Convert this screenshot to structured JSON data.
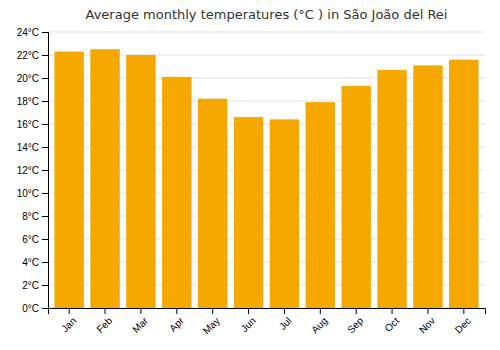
{
  "chart_data": {
    "type": "bar",
    "title": "Average monthly temperatures (°C ) in São João del Rei",
    "categories": [
      "Jan",
      "Feb",
      "Mar",
      "Apr",
      "May",
      "Jun",
      "Jul",
      "Aug",
      "Sep",
      "Oct",
      "Nov",
      "Dec"
    ],
    "values": [
      22.3,
      22.5,
      22.0,
      20.1,
      18.2,
      16.6,
      16.4,
      17.9,
      19.3,
      20.7,
      21.1,
      21.6
    ],
    "color": "#F5A800",
    "ylim": [
      0,
      24
    ],
    "yticks": [
      {
        "value": 0,
        "label": "0°C"
      },
      {
        "value": 2,
        "label": "2°C"
      },
      {
        "value": 4,
        "label": "4°C"
      },
      {
        "value": 6,
        "label": "6°C"
      },
      {
        "value": 8,
        "label": "8°C"
      },
      {
        "value": 10,
        "label": "10°C"
      },
      {
        "value": 12,
        "label": "12°C"
      },
      {
        "value": 14,
        "label": "14°C"
      },
      {
        "value": 16,
        "label": "16°C"
      },
      {
        "value": 18,
        "label": "18°C"
      },
      {
        "value": 20,
        "label": "20°C"
      },
      {
        "value": 22,
        "label": "22°C"
      },
      {
        "value": 24,
        "label": "24°C"
      }
    ],
    "grid": true
  }
}
